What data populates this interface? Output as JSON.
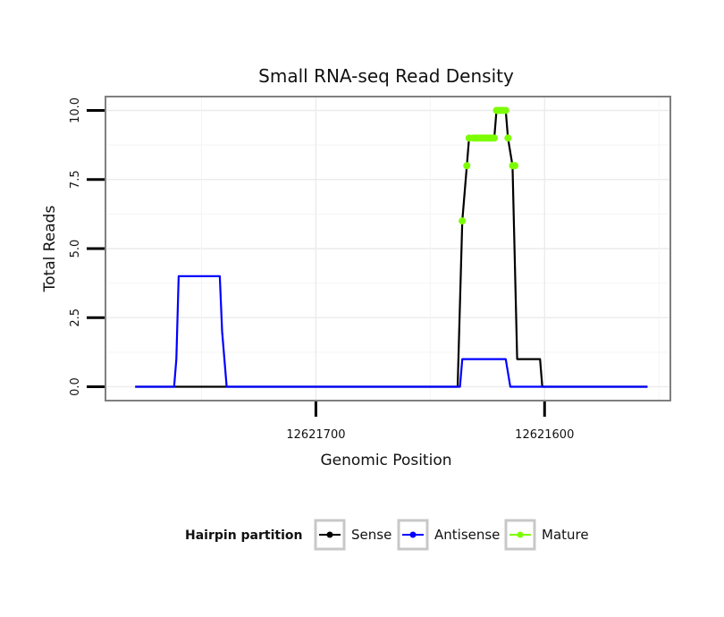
{
  "chart_data": {
    "type": "line",
    "title": "Small RNA-seq Read Density",
    "xlabel": "Genomic Position",
    "ylabel": "Total Reads",
    "xlim": [
      12621792,
      12621545
    ],
    "x_reversed": true,
    "ylim": [
      -0.5,
      10.5
    ],
    "x_ticks": [
      12621700,
      12621600
    ],
    "x_tick_labels": [
      "12621700",
      "12621600"
    ],
    "y_ticks": [
      0,
      2.5,
      5,
      7.5,
      10
    ],
    "y_tick_labels": [
      "0.0",
      "2.5",
      "5.0",
      "7.5",
      "10.0"
    ],
    "grid": true,
    "legend": {
      "position": "bottom",
      "title": "Hairpin partition",
      "entries": [
        "Sense",
        "Antisense",
        "Mature"
      ]
    },
    "series": [
      {
        "name": "Sense",
        "color": "#000000",
        "points": [
          [
            12621779,
            0
          ],
          [
            12621638,
            0
          ],
          [
            12621636,
            6
          ],
          [
            12621634,
            8
          ],
          [
            12621633,
            9
          ],
          [
            12621631,
            9
          ],
          [
            12621629,
            9
          ],
          [
            12621627,
            9
          ],
          [
            12621625,
            9
          ],
          [
            12621623,
            9
          ],
          [
            12621622,
            9
          ],
          [
            12621621,
            10
          ],
          [
            12621619,
            10
          ],
          [
            12621617,
            10
          ],
          [
            12621616,
            9
          ],
          [
            12621614,
            8
          ],
          [
            12621612,
            1
          ],
          [
            12621602,
            1
          ],
          [
            12621601,
            0
          ],
          [
            12621555,
            0
          ]
        ]
      },
      {
        "name": "Antisense",
        "color": "#0000ff",
        "points": [
          [
            12621779,
            0
          ],
          [
            12621762,
            0
          ],
          [
            12621761,
            1
          ],
          [
            12621760,
            4
          ],
          [
            12621742,
            4
          ],
          [
            12621741,
            2
          ],
          [
            12621739,
            0
          ],
          [
            12621637,
            0
          ],
          [
            12621636,
            1
          ],
          [
            12621617,
            1
          ],
          [
            12621615,
            0
          ],
          [
            12621555,
            0
          ]
        ]
      },
      {
        "name": "Mature",
        "color": "#7cfc00",
        "points": [
          [
            12621636,
            6
          ],
          [
            12621634,
            8
          ],
          [
            12621633,
            9
          ],
          [
            12621631,
            9
          ],
          [
            12621630,
            9
          ],
          [
            12621629,
            9
          ],
          [
            12621628,
            9
          ],
          [
            12621627,
            9
          ],
          [
            12621626,
            9
          ],
          [
            12621625,
            9
          ],
          [
            12621624,
            9
          ],
          [
            12621623,
            9
          ],
          [
            12621622,
            9
          ],
          [
            12621621,
            10
          ],
          [
            12621620,
            10
          ],
          [
            12621619,
            10
          ],
          [
            12621618,
            10
          ],
          [
            12621617,
            10
          ],
          [
            12621616,
            9
          ],
          [
            12621614,
            8
          ],
          [
            12621613,
            8
          ]
        ]
      }
    ]
  }
}
